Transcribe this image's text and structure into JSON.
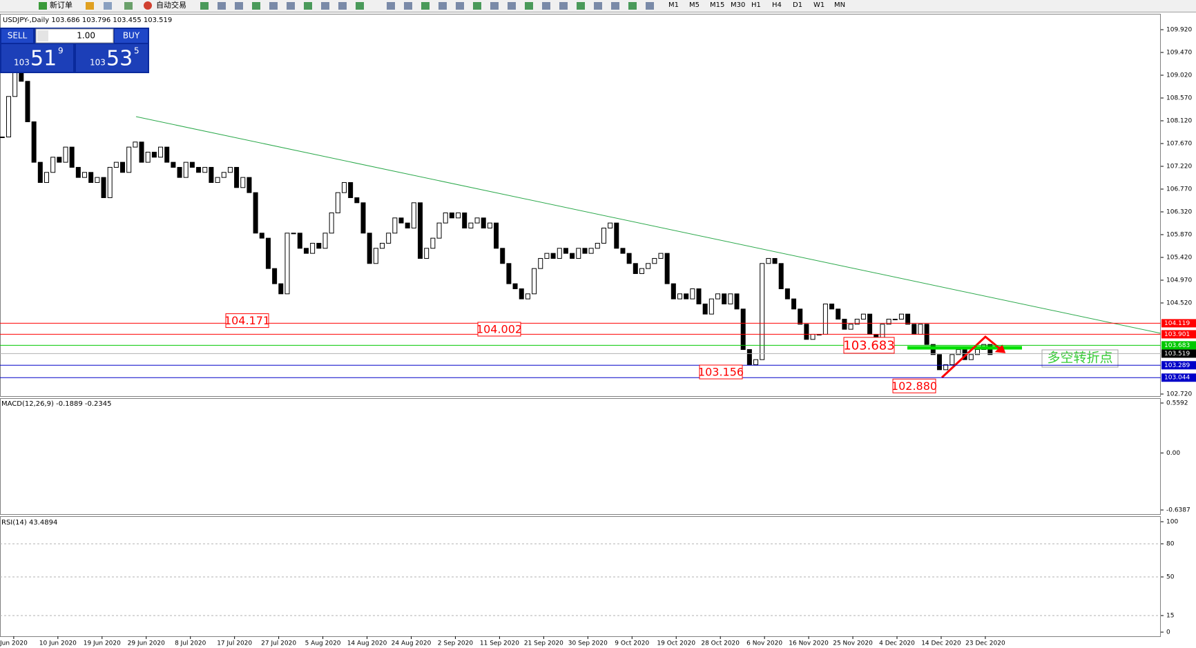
{
  "toolbar": {
    "new_order": "新订单",
    "auto_trading": "自动交易",
    "timeframes": [
      "M1",
      "M5",
      "M15",
      "M30",
      "H1",
      "H4",
      "D1",
      "W1",
      "MN"
    ]
  },
  "trade_panel": {
    "sell": "SELL",
    "buy": "BUY",
    "lots": "1.00",
    "sell_price": {
      "big": "103",
      "pips": "51",
      "point": "9"
    },
    "buy_price": {
      "big": "103",
      "pips": "53",
      "point": "5"
    }
  },
  "chart": {
    "header": "USDJPY-,Daily 103.686 103.796 103.455 103.519",
    "price_ticks": [
      {
        "value": 109.92,
        "label": "109.920"
      },
      {
        "value": 109.47,
        "label": "109.470"
      },
      {
        "value": 109.02,
        "label": "109.020"
      },
      {
        "value": 108.57,
        "label": "108.570"
      },
      {
        "value": 108.12,
        "label": "108.120"
      },
      {
        "value": 107.67,
        "label": "107.670"
      },
      {
        "value": 107.22,
        "label": "107.220"
      },
      {
        "value": 106.77,
        "label": "106.770"
      },
      {
        "value": 106.32,
        "label": "106.320"
      },
      {
        "value": 105.87,
        "label": "105.870"
      },
      {
        "value": 105.42,
        "label": "105.420"
      },
      {
        "value": 104.97,
        "label": "104.970"
      },
      {
        "value": 104.52,
        "label": "104.520"
      },
      {
        "value": 102.72,
        "label": "102.720"
      }
    ],
    "closes": [
      107.8,
      108.6,
      109.1,
      108.9,
      108.1,
      107.3,
      106.9,
      107.1,
      107.4,
      107.3,
      107.6,
      107.2,
      107.0,
      107.1,
      106.9,
      107.0,
      106.6,
      107.2,
      107.3,
      107.1,
      107.6,
      107.7,
      107.3,
      107.5,
      107.4,
      107.6,
      107.3,
      107.2,
      107.0,
      107.3,
      107.2,
      107.1,
      107.2,
      106.9,
      107.0,
      107.1,
      107.2,
      106.8,
      107.0,
      106.7,
      105.9,
      105.8,
      105.2,
      104.9,
      104.7,
      105.9,
      105.9,
      105.6,
      105.5,
      105.7,
      105.6,
      105.9,
      106.3,
      106.7,
      106.9,
      106.6,
      106.5,
      105.9,
      105.3,
      105.6,
      105.7,
      105.9,
      106.2,
      106.1,
      106.0,
      106.5,
      105.4,
      105.6,
      105.8,
      106.1,
      106.3,
      106.2,
      106.3,
      106.0,
      106.1,
      106.2,
      106.0,
      106.1,
      105.6,
      105.3,
      104.9,
      104.8,
      104.6,
      104.7,
      105.2,
      105.4,
      105.5,
      105.4,
      105.6,
      105.5,
      105.4,
      105.6,
      105.5,
      105.6,
      105.7,
      106.0,
      106.1,
      105.6,
      105.5,
      105.3,
      105.1,
      105.2,
      105.3,
      105.4,
      105.5,
      104.9,
      104.6,
      104.7,
      104.6,
      104.8,
      104.5,
      104.3,
      104.6,
      104.7,
      104.5,
      104.7,
      104.4,
      103.6,
      103.3,
      103.4,
      105.3,
      105.4,
      105.3,
      104.8,
      104.6,
      104.4,
      104.1,
      103.8,
      103.9,
      103.9,
      104.5,
      104.4,
      104.2,
      104.0,
      104.1,
      104.2,
      104.3,
      103.9,
      103.7,
      104.1,
      104.2,
      104.2,
      104.3,
      104.1,
      103.9,
      104.1,
      103.7,
      103.5,
      103.2,
      103.3,
      103.5,
      103.6,
      103.4,
      103.5,
      103.6,
      103.7,
      103.5
    ],
    "levels": [
      {
        "value": 104.119,
        "label": "104.119",
        "color": "#ff0000"
      },
      {
        "value": 103.901,
        "label": "103.901",
        "color": "#ff0000"
      },
      {
        "value": 103.683,
        "label": "103.683",
        "color": "#00c800"
      },
      {
        "value": 103.519,
        "label": "103.519",
        "color": "#000000"
      },
      {
        "value": 103.289,
        "label": "103.289",
        "color": "#0000c8"
      },
      {
        "value": 103.044,
        "label": "103.044",
        "color": "#0000c8"
      }
    ],
    "annotations": [
      {
        "value": 104.171,
        "label": "104.171"
      },
      {
        "value": 104.002,
        "label": "104.002"
      },
      {
        "value": 103.156,
        "label": "103.156"
      },
      {
        "value": 103.683,
        "label": "103.683"
      },
      {
        "value": 102.88,
        "label": "102.880"
      }
    ],
    "note": "多空转折点",
    "dates": [
      "Jun 2020",
      "10 Jun 2020",
      "19 Jun 2020",
      "29 Jun 2020",
      "8 Jul 2020",
      "17 Jul 2020",
      "27 Jul 2020",
      "5 Aug 2020",
      "14 Aug 2020",
      "24 Aug 2020",
      "2 Sep 2020",
      "11 Sep 2020",
      "21 Sep 2020",
      "30 Sep 2020",
      "9 Oct 2020",
      "19 Oct 2020",
      "28 Oct 2020",
      "6 Nov 2020",
      "16 Nov 2020",
      "25 Nov 2020",
      "4 Dec 2020",
      "14 Dec 2020",
      "23 Dec 2020"
    ]
  },
  "macd": {
    "title": "MACD(12,26,9) -0.1889 -0.2345",
    "ticks": [
      0.5592,
      {
        "value": 0,
        "label": "0.00"
      },
      -0.6387
    ]
  },
  "rsi": {
    "title": "RSI(14) 43.4894",
    "ticks": [
      100,
      80,
      50,
      15,
      0
    ]
  }
}
